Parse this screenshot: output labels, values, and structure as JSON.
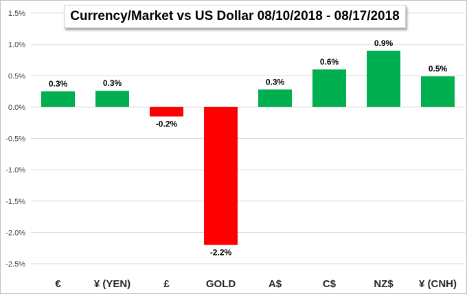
{
  "chart_data": {
    "type": "bar",
    "title": "Currency/Market vs US Dollar 08/10/2018 - 08/17/2018",
    "categories": [
      "€",
      "¥ (YEN)",
      "£",
      "GOLD",
      "A$",
      "C$",
      "NZ$",
      "¥ (CNH)"
    ],
    "values": [
      0.25,
      0.26,
      -0.15,
      -2.2,
      0.28,
      0.6,
      0.9,
      0.49
    ],
    "data_labels": [
      "0.3%",
      "0.3%",
      "-0.2%",
      "-2.2%",
      "0.3%",
      "0.6%",
      "0.9%",
      "0.5%"
    ],
    "ylim": [
      -2.5,
      1.5
    ],
    "yticks": [
      1.5,
      1.0,
      0.5,
      0.0,
      -0.5,
      -1.0,
      -1.5,
      -2.0,
      -2.5
    ],
    "ytick_labels": [
      "1.5%",
      "1.0%",
      "0.5%",
      "0.0%",
      "-0.5%",
      "-1.0%",
      "-1.5%",
      "-2.0%",
      "-2.5%"
    ],
    "grid": true,
    "legend": "none",
    "colors": {
      "positive": "#00b050",
      "negative": "#ff0000",
      "grid": "#d9d9d9"
    }
  }
}
